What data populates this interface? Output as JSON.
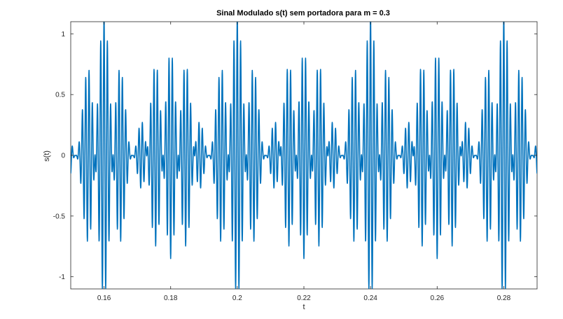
{
  "chart_data": {
    "type": "line",
    "title": "Sinal Modulado s(t) sem portadora para m = 0.3",
    "xlabel": "t",
    "ylabel": "s(t)",
    "xlim": [
      0.15,
      0.29
    ],
    "ylim": [
      -1.1,
      1.1
    ],
    "xticks": [
      0.16,
      0.18,
      0.2,
      0.22,
      0.24,
      0.26,
      0.28
    ],
    "yticks": [
      -1,
      -0.5,
      0,
      0.5,
      1
    ],
    "grid": false,
    "legend": "none",
    "series": [
      {
        "color": "#0072bd",
        "formula": "s(t) = cos(2π·1000·t)·[cos(2π·25·t)·cos(2π·100·t) + 0.15·cos(2π·50·t)]",
        "sample_step": 5e-05
      }
    ]
  }
}
